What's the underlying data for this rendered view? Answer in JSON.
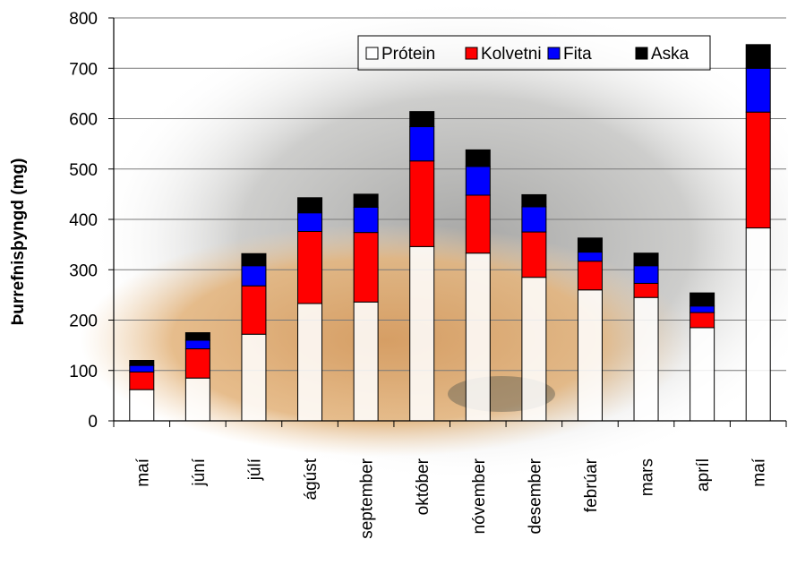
{
  "chart_data": {
    "type": "bar",
    "stacked": true,
    "ylabel": "Þurrefnisþyngd (mg)",
    "ylim": [
      0,
      800
    ],
    "yticks": [
      0,
      100,
      200,
      300,
      400,
      500,
      600,
      700,
      800
    ],
    "grid": true,
    "legend_position": "top-right",
    "categories": [
      "maí",
      "júní",
      "júlí",
      "ágúst",
      "september",
      "október",
      "nóvember",
      "desember",
      "febrúar",
      "mars",
      "apríl",
      "maí"
    ],
    "series": [
      {
        "name": "Prótein",
        "color": "#ffffff",
        "values": [
          62,
          85,
          172,
          233,
          236,
          346,
          333,
          285,
          260,
          245,
          185,
          383
        ]
      },
      {
        "name": "Kolvetni",
        "color": "#ff0000",
        "values": [
          35,
          58,
          96,
          143,
          138,
          170,
          115,
          90,
          57,
          28,
          30,
          230
        ]
      },
      {
        "name": "Fita",
        "color": "#0000ff",
        "values": [
          13,
          17,
          40,
          37,
          50,
          68,
          57,
          50,
          18,
          35,
          13,
          87
        ]
      },
      {
        "name": "Aska",
        "color": "#000000",
        "values": [
          10,
          15,
          24,
          30,
          26,
          30,
          33,
          24,
          28,
          25,
          26,
          47
        ]
      }
    ]
  }
}
